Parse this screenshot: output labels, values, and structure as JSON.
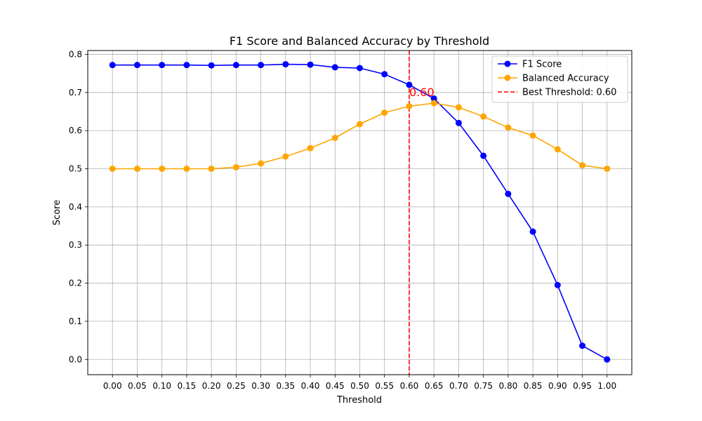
{
  "chart_data": {
    "type": "line",
    "title": "F1 Score and Balanced Accuracy by Threshold",
    "xlabel": "Threshold",
    "ylabel": "Score",
    "xlim": [
      -0.05,
      1.05
    ],
    "ylim": [
      -0.04,
      0.81
    ],
    "grid": true,
    "legend_position": "top-right",
    "x": [
      0.0,
      0.05,
      0.1,
      0.15,
      0.2,
      0.25,
      0.3,
      0.35,
      0.4,
      0.45,
      0.5,
      0.55,
      0.6,
      0.65,
      0.7,
      0.75,
      0.8,
      0.85,
      0.9,
      0.95,
      1.0
    ],
    "x_tick_labels": [
      "0.00",
      "0.05",
      "0.10",
      "0.15",
      "0.20",
      "0.25",
      "0.30",
      "0.35",
      "0.40",
      "0.45",
      "0.50",
      "0.55",
      "0.60",
      "0.65",
      "0.70",
      "0.75",
      "0.80",
      "0.85",
      "0.90",
      "0.95",
      "1.00"
    ],
    "y_ticks": [
      0.0,
      0.1,
      0.2,
      0.3,
      0.4,
      0.5,
      0.6,
      0.7,
      0.8
    ],
    "y_tick_labels": [
      "0.0",
      "0.1",
      "0.2",
      "0.3",
      "0.4",
      "0.5",
      "0.6",
      "0.7",
      "0.8"
    ],
    "series": [
      {
        "name": "F1 Score",
        "color": "#0000ff",
        "marker": "circle",
        "values": [
          0.772,
          0.772,
          0.772,
          0.772,
          0.771,
          0.772,
          0.772,
          0.774,
          0.773,
          0.766,
          0.764,
          0.748,
          0.72,
          0.684,
          0.62,
          0.534,
          0.434,
          0.335,
          0.195,
          0.036,
          0.0
        ]
      },
      {
        "name": "Balanced Accuracy",
        "color": "#ffa500",
        "marker": "circle",
        "values": [
          0.5,
          0.5,
          0.5,
          0.5,
          0.5,
          0.504,
          0.514,
          0.532,
          0.554,
          0.581,
          0.617,
          0.647,
          0.664,
          0.672,
          0.661,
          0.637,
          0.608,
          0.587,
          0.551,
          0.509,
          0.5
        ]
      }
    ],
    "threshold_line": {
      "name": "Best Threshold: 0.60",
      "x": 0.6,
      "color": "#ff0000",
      "style": "dashed",
      "annotation": "0.60"
    }
  }
}
